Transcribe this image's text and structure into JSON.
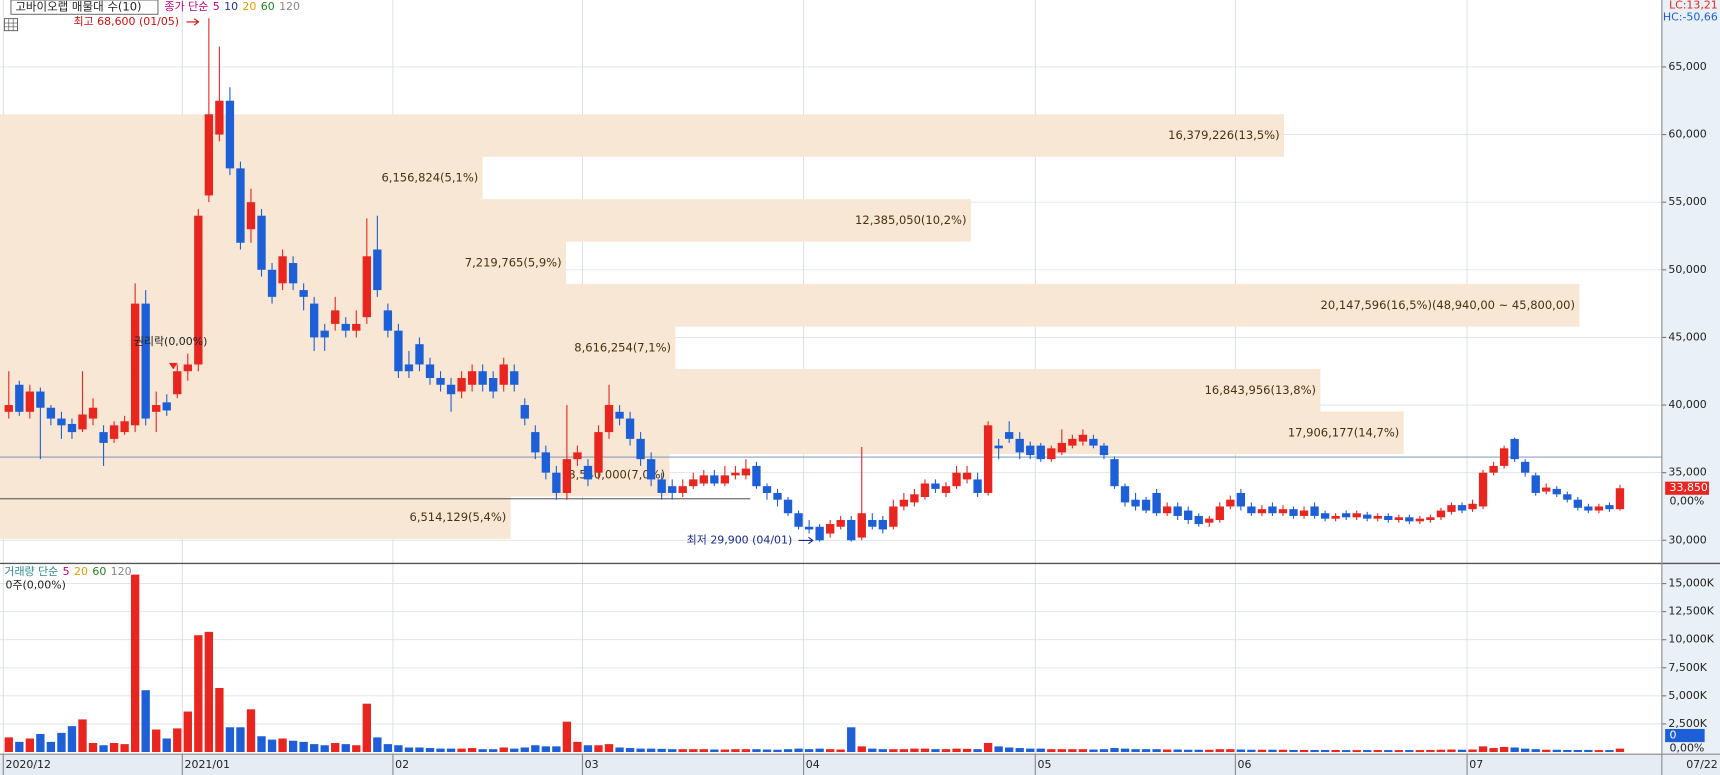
{
  "header": {
    "title": "고바이오랩 매물대 수(10)",
    "lc": "LC:13,21",
    "hc": "HC:-50,66",
    "ma_legend": [
      {
        "text": "종가 단순",
        "color": "#c0007a"
      },
      {
        "text": "5",
        "color": "#c0007a"
      },
      {
        "text": "10",
        "color": "#2233aa"
      },
      {
        "text": "20",
        "color": "#e0a000"
      },
      {
        "text": "60",
        "color": "#208020"
      },
      {
        "text": "120",
        "color": "#888888"
      }
    ]
  },
  "chart_data": [
    {
      "type": "candlestick",
      "colors": {
        "up": "#e8251f",
        "down": "#1d5fd6"
      },
      "ylim": [
        28450,
        69950
      ],
      "yticks": [
        {
          "value": 30000,
          "label": "30,000"
        },
        {
          "value": 35000,
          "label": "35,000"
        },
        {
          "value": 40000,
          "label": "40,000"
        },
        {
          "value": 45000,
          "label": "45,000"
        },
        {
          "value": 50000,
          "label": "50,000"
        },
        {
          "value": 55000,
          "label": "55,000"
        },
        {
          "value": 60000,
          "label": "60,000"
        },
        {
          "value": 65000,
          "label": "65,000"
        }
      ],
      "grid": true,
      "categories": [
        "2020/12",
        null,
        null,
        null,
        null,
        null,
        null,
        null,
        null,
        null,
        null,
        null,
        null,
        null,
        null,
        null,
        null,
        "2021/01",
        null,
        null,
        null,
        null,
        null,
        null,
        null,
        null,
        null,
        null,
        null,
        null,
        null,
        null,
        null,
        null,
        null,
        null,
        null,
        "02",
        null,
        null,
        null,
        null,
        null,
        null,
        null,
        null,
        null,
        null,
        null,
        null,
        null,
        null,
        null,
        null,
        null,
        "03",
        null,
        null,
        null,
        null,
        null,
        null,
        null,
        null,
        null,
        null,
        null,
        null,
        null,
        null,
        null,
        null,
        null,
        null,
        null,
        null,
        "04",
        null,
        null,
        null,
        null,
        null,
        null,
        null,
        null,
        null,
        null,
        null,
        null,
        null,
        null,
        null,
        null,
        null,
        null,
        null,
        null,
        null,
        "05",
        null,
        null,
        null,
        null,
        null,
        null,
        null,
        null,
        null,
        null,
        null,
        null,
        null,
        null,
        null,
        null,
        null,
        null,
        "06",
        null,
        null,
        null,
        null,
        null,
        null,
        null,
        null,
        null,
        null,
        null,
        null,
        null,
        null,
        null,
        null,
        null,
        null,
        null,
        null,
        null,
        "07",
        null,
        null,
        null,
        null,
        null,
        null,
        null,
        null,
        null,
        null,
        null,
        null,
        null,
        null
      ],
      "open": [
        39500,
        41500,
        39500,
        41000,
        39800,
        39000,
        38600,
        38200,
        39000,
        38000,
        37500,
        38000,
        38500,
        47500,
        39500,
        40200,
        40800,
        42500,
        43000,
        55500,
        60000,
        62500,
        57500,
        53000,
        54000,
        50000,
        49000,
        50500,
        48500,
        47500,
        45500,
        46000,
        46000,
        45500,
        46500,
        51500,
        47000,
        45500,
        43000,
        44500,
        43000,
        42000,
        41500,
        41000,
        41500,
        42500,
        42000,
        41500,
        42500,
        40000,
        38000,
        36500,
        35000,
        33500,
        36000,
        35500,
        35000,
        38000,
        39500,
        39000,
        37500,
        36000,
        34500,
        34000,
        33500,
        34000,
        34200,
        34800,
        34200,
        34800,
        34800,
        35500,
        34000,
        33500,
        33000,
        32000,
        31000,
        31000,
        30500,
        31000,
        31500,
        30200,
        31500,
        31500,
        31000,
        32500,
        32800,
        33200,
        34200,
        33500,
        34000,
        34500,
        34500,
        33500,
        37000,
        38000,
        37500,
        37000,
        37000,
        36000,
        36500,
        37000,
        37300,
        37500,
        37000,
        36000,
        34000,
        33000,
        33000,
        33500,
        32000,
        32500,
        32200,
        31800,
        31300,
        31500,
        32500,
        33500,
        32500,
        32000,
        32500,
        32000,
        32300,
        31800,
        32500,
        32000,
        31600,
        32000,
        31700,
        31900,
        31600,
        31800,
        31500,
        31700,
        31400,
        31500,
        31700,
        32100,
        32600,
        32300,
        32500,
        35000,
        35500,
        37500,
        35800,
        34800,
        33600,
        33800,
        33400,
        33000,
        32500,
        32200,
        32600,
        32300
      ],
      "high": [
        42500,
        41800,
        41500,
        41300,
        40000,
        39500,
        39000,
        42500,
        40500,
        38500,
        38800,
        39200,
        49000,
        48500,
        41000,
        40800,
        43000,
        43800,
        54500,
        68600,
        66500,
        63500,
        58000,
        56000,
        54500,
        50500,
        51500,
        51000,
        49000,
        48000,
        46000,
        48000,
        46500,
        47000,
        53800,
        54000,
        47500,
        46000,
        44000,
        45000,
        43500,
        42500,
        42000,
        42500,
        43000,
        43000,
        42500,
        43500,
        43000,
        40500,
        38500,
        37000,
        35500,
        40000,
        37000,
        36000,
        38500,
        41500,
        40000,
        39500,
        38000,
        36500,
        35000,
        34500,
        34500,
        35000,
        35200,
        35200,
        35500,
        35500,
        36000,
        35800,
        34200,
        33800,
        33200,
        32200,
        31500,
        31200,
        31500,
        31800,
        31800,
        36900,
        32000,
        31800,
        33000,
        33500,
        33800,
        34500,
        34500,
        34300,
        35500,
        35500,
        35000,
        38800,
        37500,
        38800,
        38000,
        37300,
        37200,
        37000,
        38200,
        37800,
        38200,
        37800,
        37200,
        36200,
        34200,
        33500,
        33200,
        33800,
        32800,
        32800,
        32500,
        32000,
        31800,
        32800,
        33300,
        33800,
        32800,
        32600,
        32800,
        32600,
        32500,
        32500,
        32800,
        32200,
        32000,
        32200,
        32200,
        32100,
        32000,
        32000,
        31900,
        31900,
        31800,
        31900,
        32400,
        32800,
        32800,
        33000,
        35200,
        35800,
        37000,
        37600,
        36000,
        35000,
        34200,
        34000,
        33600,
        33200,
        32700,
        32700,
        32800,
        34100
      ],
      "low": [
        39000,
        39200,
        39000,
        36000,
        38500,
        37500,
        37500,
        38000,
        38500,
        35500,
        37200,
        37800,
        38000,
        38500,
        38000,
        39200,
        40500,
        41800,
        42500,
        55000,
        59500,
        57000,
        51500,
        52000,
        49500,
        47500,
        48500,
        48500,
        47000,
        44000,
        44000,
        45500,
        45000,
        45000,
        46000,
        48000,
        45000,
        42000,
        42000,
        42500,
        41500,
        41000,
        39500,
        40500,
        41000,
        41000,
        40500,
        41000,
        41000,
        38500,
        36000,
        34500,
        33000,
        33000,
        35500,
        34000,
        34500,
        37500,
        38500,
        37000,
        35500,
        34000,
        33000,
        33000,
        33200,
        33800,
        34000,
        34000,
        34000,
        34500,
        34500,
        33800,
        33000,
        32500,
        31800,
        30800,
        30500,
        29900,
        30200,
        30800,
        29900,
        30000,
        30800,
        30500,
        30800,
        32200,
        32500,
        33000,
        33500,
        33200,
        33800,
        34200,
        33200,
        33300,
        36000,
        37200,
        36000,
        36000,
        35800,
        35800,
        36300,
        36800,
        37000,
        36800,
        36000,
        33800,
        32500,
        32200,
        32000,
        31800,
        31800,
        31500,
        31200,
        31000,
        31000,
        31300,
        32300,
        32200,
        31800,
        31800,
        31800,
        31800,
        31600,
        31600,
        31600,
        31400,
        31400,
        31500,
        31500,
        31400,
        31400,
        31300,
        31300,
        31200,
        31200,
        31300,
        31500,
        31900,
        32000,
        32100,
        32300,
        34800,
        35300,
        35800,
        34700,
        33300,
        33400,
        33200,
        32800,
        32200,
        32000,
        32000,
        32100,
        32200
      ],
      "close": [
        40000,
        39500,
        41000,
        39800,
        39000,
        38500,
        38000,
        39300,
        39800,
        37200,
        38500,
        38800,
        47500,
        39000,
        40000,
        39600,
        42500,
        43000,
        54000,
        61500,
        62500,
        57500,
        52000,
        55000,
        50000,
        48000,
        51000,
        49000,
        48000,
        45000,
        45000,
        47000,
        45500,
        46000,
        51000,
        48500,
        45500,
        42500,
        42500,
        43000,
        42000,
        41500,
        40800,
        42000,
        42500,
        41500,
        41000,
        43000,
        41500,
        39000,
        36500,
        35000,
        33500,
        36000,
        36500,
        34500,
        38000,
        40000,
        39000,
        37500,
        36000,
        34500,
        33500,
        33500,
        34000,
        34500,
        34800,
        34200,
        34800,
        35000,
        35300,
        34000,
        33500,
        33000,
        32000,
        31000,
        30800,
        30000,
        31200,
        31500,
        30000,
        32000,
        31000,
        30800,
        32500,
        33000,
        33400,
        34200,
        33800,
        34000,
        35000,
        35000,
        33500,
        38500,
        36800,
        37500,
        36500,
        36300,
        36000,
        36800,
        37200,
        37500,
        37800,
        37000,
        36300,
        34000,
        32800,
        32500,
        32200,
        32000,
        32500,
        31800,
        31500,
        31200,
        31600,
        32500,
        33000,
        32500,
        32000,
        32300,
        32000,
        32300,
        31800,
        32200,
        31800,
        31600,
        31800,
        31700,
        32000,
        31600,
        31800,
        31500,
        31700,
        31400,
        31600,
        31700,
        32200,
        32600,
        32200,
        32700,
        35000,
        35500,
        36800,
        36000,
        35000,
        33500,
        33900,
        33400,
        33000,
        32400,
        32200,
        32500,
        32300,
        33850
      ],
      "annotations": {
        "high": "최고 68,600 (01/05)",
        "low": "최저 29,900 (04/01)",
        "ex_rights": "권리락(0,00%)"
      },
      "last_price_label": "33,850",
      "change_label": "0,00%",
      "end_date": "07/22",
      "volume_profile": {
        "color": "#f7e7d4",
        "xlim": [
          0,
          21200000
        ],
        "edges": [
          61500,
          58360,
          55220,
          52080,
          48940,
          45800,
          42660,
          39520,
          36380,
          33240,
          30100
        ],
        "values": [
          16379226,
          6156824,
          12385050,
          7219765,
          20147596,
          8616254,
          16843956,
          17906177,
          8540000,
          6514129
        ],
        "value_labels": [
          "16,379,226(13,5%)",
          "6,156,824(5,1%)",
          "12,385,050(10,2%)",
          "7,219,765(5,9%)",
          "20,147,596(16,5%)(48,940,00 ~ 45,800,00)",
          "8,616,254(7,1%)",
          "16,843,956(13,8%)",
          "17,906,177(14,7%)",
          "8,540,000(7,0%)",
          "6,514,129(5,4%)"
        ]
      }
    },
    {
      "type": "bar",
      "legend": [
        {
          "text": "거래량 단순",
          "color": "#2a8a8a"
        },
        {
          "text": "5",
          "color": "#c0007a"
        },
        {
          "text": "20",
          "color": "#e0a000"
        },
        {
          "text": "60",
          "color": "#208020"
        },
        {
          "text": "120",
          "color": "#888888"
        }
      ],
      "summary": "0주(0,00%)",
      "last_label": "0",
      "pct_label": "0,00%",
      "ylim": [
        0,
        16500
      ],
      "yticks": [
        {
          "value": 2500,
          "label": "2,500K"
        },
        {
          "value": 5000,
          "label": "5,000K"
        },
        {
          "value": 7500,
          "label": "7,500K"
        },
        {
          "value": 10000,
          "label": "10,000K"
        },
        {
          "value": 12500,
          "label": "12,500K"
        },
        {
          "value": 15000,
          "label": "15,000K"
        }
      ],
      "values": [
        1300,
        900,
        1200,
        1600,
        900,
        1700,
        2300,
        2900,
        800,
        600,
        800,
        700,
        15800,
        5500,
        2000,
        1200,
        2100,
        3600,
        10400,
        10700,
        5700,
        2200,
        2200,
        3800,
        1400,
        1100,
        1200,
        1000,
        900,
        700,
        600,
        800,
        700,
        600,
        4300,
        1300,
        700,
        600,
        400,
        400,
        350,
        300,
        300,
        300,
        350,
        250,
        250,
        400,
        300,
        400,
        600,
        500,
        500,
        2700,
        900,
        600,
        600,
        700,
        400,
        350,
        300,
        300,
        280,
        250,
        250,
        250,
        250,
        220,
        220,
        250,
        250,
        250,
        220,
        200,
        250,
        300,
        250,
        300,
        250,
        220,
        2200,
        500,
        300,
        250,
        250,
        250,
        300,
        300,
        250,
        250,
        300,
        280,
        250,
        800,
        500,
        400,
        350,
        300,
        300,
        250,
        250,
        250,
        250,
        220,
        250,
        350,
        300,
        250,
        250,
        250,
        220,
        220,
        200,
        200,
        200,
        250,
        250,
        220,
        200,
        200,
        200,
        200,
        180,
        180,
        180,
        180,
        180,
        170,
        170,
        170,
        170,
        170,
        170,
        170,
        170,
        180,
        200,
        220,
        200,
        220,
        500,
        350,
        450,
        400,
        300,
        250,
        200,
        200,
        180,
        180,
        180,
        170,
        170,
        300
      ]
    }
  ]
}
